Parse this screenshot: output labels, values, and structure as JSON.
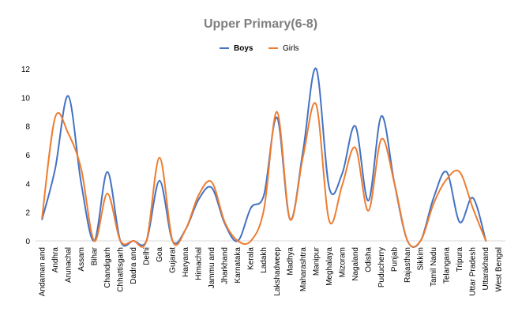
{
  "chart_data": {
    "type": "line",
    "title": "Upper Primary(6-8)",
    "categories": [
      "Andaman and",
      "Andhra",
      "Arunachal",
      "Assam",
      "Bihar",
      "Chandigarh",
      "Chhattisgarh",
      "Dadra and",
      "Delhi",
      "Goa",
      "Gujarat",
      "Haryana",
      "Himachal",
      "Jammu and",
      "Jharkhand",
      "Karnataka",
      "Kerala",
      "Ladakh",
      "Lakshadweep",
      "Madhya",
      "Maharashtra",
      "Manipur",
      "Meghalaya",
      "Mizoram",
      "Nagaland",
      "Odisha",
      "Puducherry",
      "Punjab",
      "Rajasthan",
      "Sikkim",
      "Tamil Nadu",
      "Telangana",
      "Tripura",
      "Uttar Pradesh",
      "Uttarakhand",
      "West Bengal"
    ],
    "series": [
      {
        "name": "Boys",
        "color": "#4472c4",
        "values": [
          1.5,
          5,
          10.1,
          4,
          0,
          4.8,
          0,
          0,
          0,
          4.2,
          0,
          0.8,
          2.9,
          3.7,
          1.2,
          0,
          2.3,
          3.2,
          8.6,
          1.5,
          6.3,
          12,
          3.7,
          4.7,
          8,
          2.8,
          8.7,
          4,
          0,
          0,
          3,
          4.8,
          1.3,
          3,
          0,
          null
        ]
      },
      {
        "name": "Girls",
        "color": "#ed7d31",
        "values": [
          1.6,
          8.6,
          7.5,
          5,
          0,
          3.3,
          0,
          0,
          0,
          5.8,
          0,
          0.8,
          3.2,
          4.1,
          1.3,
          0,
          0,
          2.2,
          9,
          1.5,
          5.9,
          9.5,
          1.4,
          3.9,
          6.5,
          2.1,
          7.1,
          4,
          0,
          0,
          2.6,
          4.3,
          4.8,
          2.3,
          0,
          null
        ]
      }
    ],
    "ylim": [
      0,
      12
    ],
    "yticks": [
      0,
      2,
      4,
      6,
      8,
      10,
      12
    ],
    "grid": false,
    "legend": "top-center",
    "smooth": true
  }
}
